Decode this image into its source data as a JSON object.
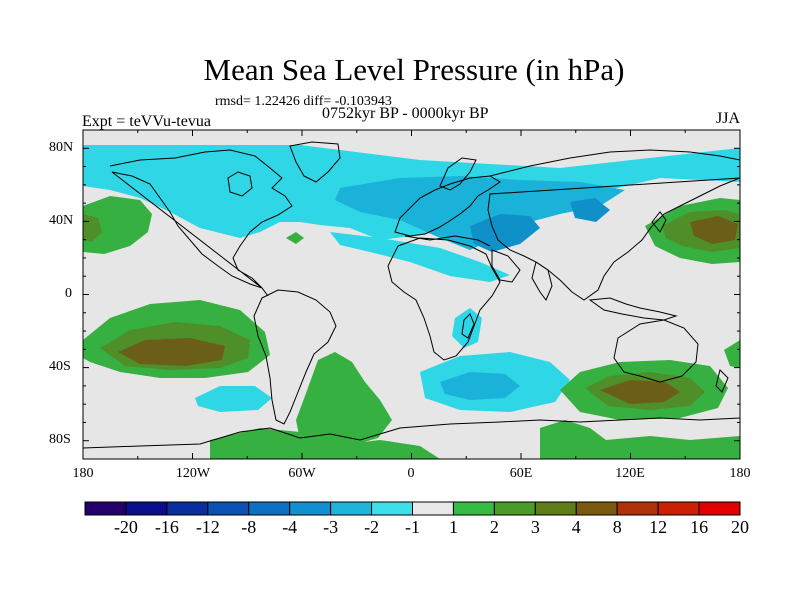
{
  "title": "Mean Sea Level Pressure (in hPa)",
  "stats": "rmsd= 1.22426 diff= -0.103943",
  "experiment": "Expt = teVVu-tevua",
  "period": "0752kyr BP - 0000kyr BP",
  "season": "JJA",
  "y_axis_labels": [
    "80N",
    "40N",
    "0",
    "40S",
    "80S"
  ],
  "x_axis_labels": [
    "180",
    "120W",
    "60W",
    "0",
    "60E",
    "120E",
    "180"
  ],
  "colorbar": {
    "labels": [
      "-20",
      "-16",
      "-12",
      "-8",
      "-4",
      "-3",
      "-2",
      "-1",
      "1",
      "2",
      "3",
      "4",
      "8",
      "12",
      "16",
      "20"
    ],
    "colors": [
      "#23006b",
      "#0b0e8c",
      "#0a2ea0",
      "#0b50b3",
      "#0c70c5",
      "#1090d0",
      "#1cb6dc",
      "#3de0e8",
      "#e8e8e8",
      "#33bb44",
      "#4a9b2a",
      "#5e7d18",
      "#7a5a10",
      "#b0300a",
      "#cc2004",
      "#e00000"
    ]
  },
  "field_colors": {
    "neutral": "#e6e6e6",
    "neg1": "#2ed6e6",
    "neg2": "#1ab2d9",
    "neg3": "#1090c8",
    "pos1": "#36b040",
    "pos2": "#4f8f2a",
    "pos3": "#6b5e18"
  }
}
